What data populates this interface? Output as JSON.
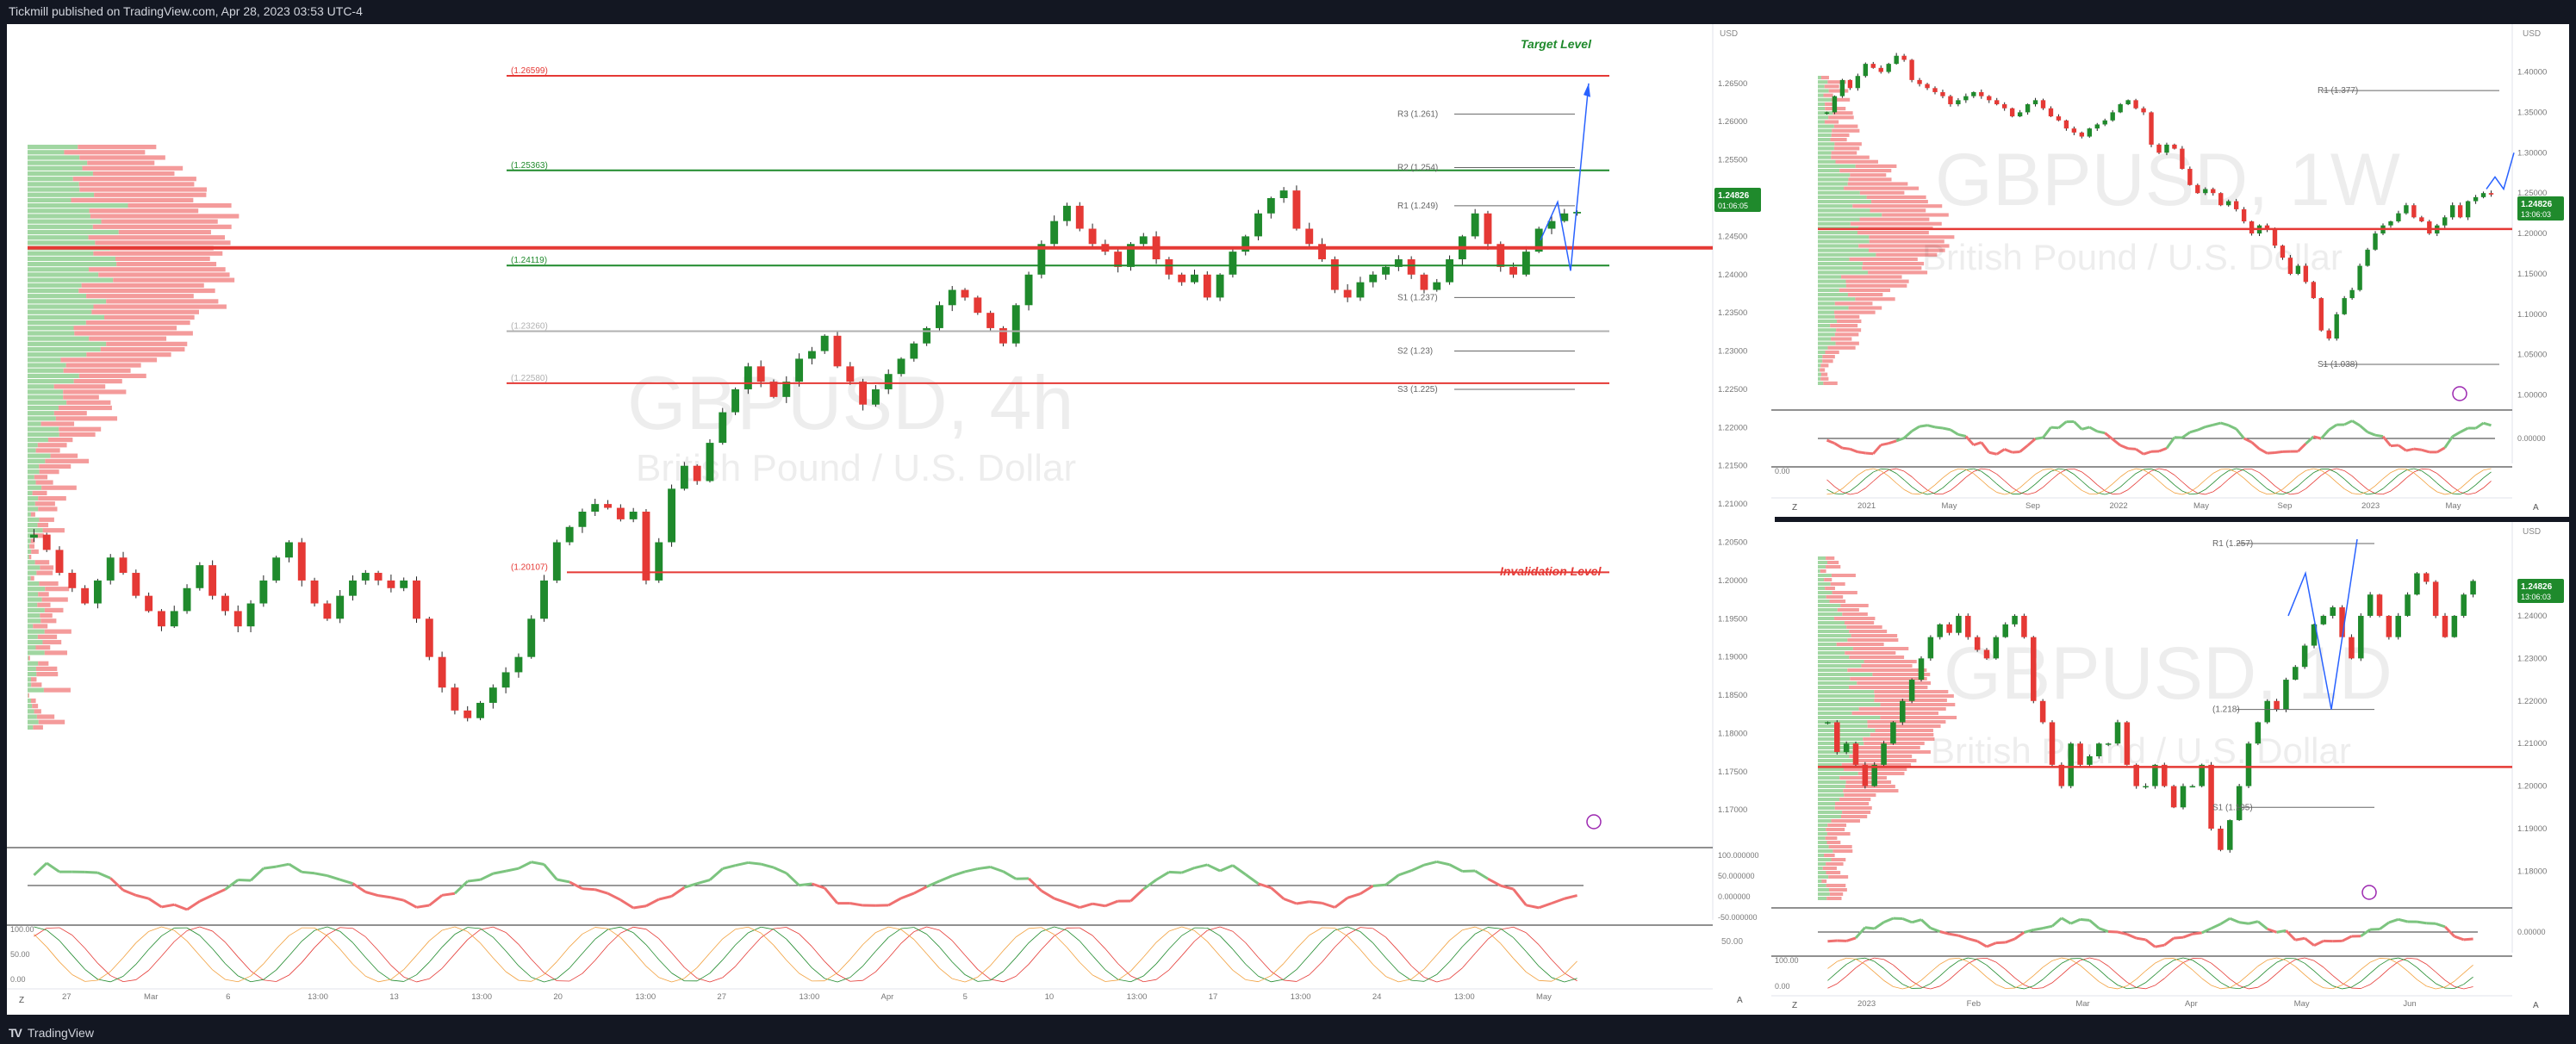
{
  "header": {
    "text": "Tickmill published on TradingView.com, Apr 28, 2023 03:53 UTC-4"
  },
  "footer": {
    "brand": "TradingView"
  },
  "colors": {
    "bull": "#1f8a2c",
    "bear": "#e53935",
    "green_profile": "#8fcf91",
    "red_profile": "#f28a8a",
    "price_tag": "#1f8a2c"
  },
  "main_chart": {
    "type": "candlestick",
    "watermark_symbol": "GBPUSD, 4h",
    "watermark_name": "British Pound / U.S. Dollar",
    "price_ticks": [
      "1.26500",
      "1.26000",
      "1.25500",
      "1.25000",
      "1.24500",
      "1.24000",
      "1.23500",
      "1.23000",
      "1.22500",
      "1.22000",
      "1.21500",
      "1.21000",
      "1.20500",
      "1.20000",
      "1.19500",
      "1.19000",
      "1.18500",
      "1.18000",
      "1.17500",
      "1.17000"
    ],
    "ylim": [
      1.168,
      1.2705
    ],
    "time_ticks": [
      "27",
      "Mar",
      "6",
      "13:00",
      "13",
      "13:00",
      "20",
      "13:00",
      "27",
      "13:00",
      "Apr",
      "5",
      "10",
      "13:00",
      "17",
      "13:00",
      "24",
      "13:00",
      "May"
    ],
    "price_tag": {
      "value": "1.24826",
      "countdown": "01:06:05"
    },
    "currency": "USD",
    "levels": [
      {
        "label": "(1.26599)",
        "value": 1.26599,
        "color": "#e53935",
        "label_color": "#e53935"
      },
      {
        "label": "(1.25363)",
        "value": 1.25363,
        "color": "#1f8a2c",
        "label_color": "#1f8a2c"
      },
      {
        "label": "(1.24119)",
        "value": 1.24119,
        "color": "#1f8a2c",
        "label_color": "#1f8a2c"
      },
      {
        "label": "(1.23260)",
        "value": 1.2326,
        "color": "#b0b0b0",
        "label_color": "#b0b0b0"
      },
      {
        "label": "(1.22580)",
        "value": 1.2258,
        "color": "#e53935",
        "label_color": "#b0b0b0"
      },
      {
        "label": "(1.20107)",
        "value": 1.20107,
        "color": "#e53935",
        "label_color": "#e53935"
      }
    ],
    "pivots": [
      {
        "label": "R3 (1.261)",
        "value": 1.261
      },
      {
        "label": "R2 (1.254)",
        "value": 1.254
      },
      {
        "label": "R1 (1.249)",
        "value": 1.249
      },
      {
        "label": "S1 (1.237)",
        "value": 1.237
      },
      {
        "label": "S2 (1.23)",
        "value": 1.23
      },
      {
        "label": "S3 (1.225)",
        "value": 1.225
      }
    ],
    "target_label": "Target  Level",
    "invalidation_label": "Invalidation Level",
    "poc_value": 1.2435,
    "osc_ticks": [
      "100.000000",
      "50.000000",
      "0.000000",
      "-50.000000"
    ],
    "stoch_ticks": [
      "100.00",
      "50.00",
      "0.00"
    ],
    "stoch_right": "50.00",
    "candle_path": [
      1.206,
      1.204,
      1.201,
      1.199,
      1.197,
      1.2,
      1.203,
      1.201,
      1.198,
      1.196,
      1.194,
      1.196,
      1.199,
      1.202,
      1.198,
      1.196,
      1.194,
      1.197,
      1.2,
      1.203,
      1.205,
      1.2,
      1.197,
      1.195,
      1.198,
      1.2,
      1.201,
      1.2,
      1.199,
      1.2,
      1.195,
      1.19,
      1.186,
      1.183,
      1.182,
      1.184,
      1.186,
      1.188,
      1.19,
      1.195,
      1.2,
      1.205,
      1.207,
      1.209,
      1.21,
      1.2095,
      1.208,
      1.209,
      1.2,
      1.205,
      1.212,
      1.215,
      1.213,
      1.218,
      1.222,
      1.225,
      1.228,
      1.226,
      1.224,
      1.226,
      1.229,
      1.23,
      1.232,
      1.228,
      1.226,
      1.223,
      1.225,
      1.227,
      1.229,
      1.231,
      1.233,
      1.236,
      1.238,
      1.237,
      1.235,
      1.233,
      1.231,
      1.236,
      1.24,
      1.244,
      1.247,
      1.249,
      1.246,
      1.244,
      1.243,
      1.241,
      1.244,
      1.245,
      1.242,
      1.24,
      1.239,
      1.24,
      1.237,
      1.24,
      1.243,
      1.245,
      1.248,
      1.25,
      1.251,
      1.246,
      1.244,
      1.242,
      1.238,
      1.237,
      1.239,
      1.24,
      1.241,
      1.242,
      1.24,
      1.238,
      1.239,
      1.242,
      1.245,
      1.248,
      1.244,
      1.241,
      1.24,
      1.243,
      1.246,
      1.247,
      1.248,
      1.2482
    ]
  },
  "weekly_chart": {
    "watermark_symbol": "GBPUSD, 1W",
    "watermark_name": "British Pound / U.S. Dollar",
    "price_ticks": [
      "1.40000",
      "1.35000",
      "1.30000",
      "1.25000",
      "1.20000",
      "1.15000",
      "1.10000",
      "1.05000",
      "1.00000"
    ],
    "ylim": [
      0.99,
      1.44
    ],
    "time_ticks": [
      "2021",
      "May",
      "Sep",
      "2022",
      "May",
      "Sep",
      "2023",
      "May"
    ],
    "price_tag": {
      "value": "1.24826",
      "countdown": "13:06:03"
    },
    "currency": "USD",
    "pivots": [
      {
        "label": "R1 (1.377)",
        "value": 1.377
      },
      {
        "label": "S1 (1.038)",
        "value": 1.038
      }
    ],
    "red_level": 1.2055,
    "osc_ticks": [
      "0.00000"
    ],
    "stoch_ticks": [
      "0.00"
    ],
    "candle_path": [
      1.35,
      1.37,
      1.39,
      1.38,
      1.395,
      1.41,
      1.405,
      1.4,
      1.41,
      1.42,
      1.415,
      1.39,
      1.385,
      1.38,
      1.375,
      1.37,
      1.36,
      1.365,
      1.37,
      1.375,
      1.37,
      1.365,
      1.36,
      1.355,
      1.345,
      1.35,
      1.36,
      1.365,
      1.355,
      1.345,
      1.34,
      1.33,
      1.325,
      1.32,
      1.33,
      1.335,
      1.34,
      1.35,
      1.36,
      1.365,
      1.355,
      1.35,
      1.31,
      1.3,
      1.31,
      1.305,
      1.28,
      1.26,
      1.25,
      1.255,
      1.25,
      1.235,
      1.24,
      1.23,
      1.215,
      1.2,
      1.21,
      1.205,
      1.185,
      1.17,
      1.15,
      1.16,
      1.14,
      1.12,
      1.08,
      1.07,
      1.1,
      1.12,
      1.13,
      1.16,
      1.18,
      1.2,
      1.21,
      1.215,
      1.225,
      1.235,
      1.22,
      1.215,
      1.2,
      1.21,
      1.22,
      1.235,
      1.22,
      1.24,
      1.245,
      1.25,
      1.2482
    ]
  },
  "daily_chart": {
    "watermark_symbol": "GBPUSD, 1D",
    "watermark_name": "British Pound / U.S. Dollar",
    "price_ticks": [
      "1.24000",
      "1.23000",
      "1.22000",
      "1.21000",
      "1.20000",
      "1.19000",
      "1.18000"
    ],
    "ylim": [
      1.173,
      1.258
    ],
    "time_ticks": [
      "2023",
      "Feb",
      "Mar",
      "Apr",
      "May",
      "Jun"
    ],
    "price_tag": {
      "value": "1.24826",
      "countdown": "13:06:03"
    },
    "currency": "USD",
    "pivots": [
      {
        "label": "R1 (1.257)",
        "value": 1.257
      },
      {
        "label": "(1.218)",
        "value": 1.218
      },
      {
        "label": "S1 (1.195)",
        "value": 1.195
      }
    ],
    "red_level": 1.2045,
    "osc_ticks": [
      "0.00000"
    ],
    "stoch_ticks": [
      "100.00",
      "0.00"
    ],
    "candle_path": [
      1.215,
      1.208,
      1.21,
      1.205,
      1.2,
      1.205,
      1.21,
      1.215,
      1.22,
      1.225,
      1.23,
      1.235,
      1.238,
      1.236,
      1.24,
      1.235,
      1.232,
      1.23,
      1.235,
      1.238,
      1.24,
      1.235,
      1.22,
      1.215,
      1.205,
      1.2,
      1.21,
      1.205,
      1.207,
      1.21,
      1.21,
      1.215,
      1.205,
      1.2,
      1.2,
      1.205,
      1.2,
      1.195,
      1.2,
      1.2,
      1.205,
      1.19,
      1.185,
      1.192,
      1.2,
      1.21,
      1.215,
      1.22,
      1.218,
      1.225,
      1.228,
      1.233,
      1.238,
      1.24,
      1.242,
      1.235,
      1.23,
      1.24,
      1.245,
      1.24,
      1.235,
      1.24,
      1.245,
      1.25,
      1.248,
      1.24,
      1.235,
      1.24,
      1.245,
      1.2482
    ]
  }
}
